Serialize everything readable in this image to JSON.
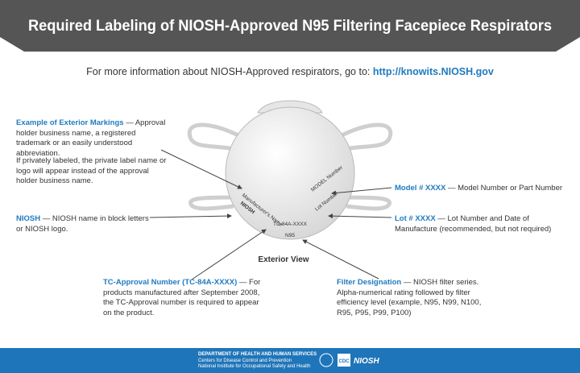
{
  "header": {
    "title": "Required Labeling of NIOSH-Approved N95 Filtering Facepiece Respirators"
  },
  "info": {
    "text": "For more information about NIOSH-Approved respirators, go to:",
    "link": "http://knowits.NIOSH.gov"
  },
  "annotations": {
    "exterior": {
      "label": "Example of Exterior Markings",
      "text": "— Approval holder business name, a registered trademark or an easily understood abbreviation.",
      "note": "If privately labeled, the private label name or logo will appear instead of the approval holder business name."
    },
    "niosh": {
      "label": "NIOSH",
      "text": "— NIOSH name in block letters or NIOSH logo."
    },
    "model": {
      "label": "Model # XXXX",
      "text": "— Model Number or Part Number"
    },
    "lot": {
      "label": "Lot # XXXX",
      "text": "— Lot Number and Date of Manufacture (recommended, but not required)"
    },
    "tc": {
      "label": "TC-Approval Number (TC-84A-XXXX)",
      "text": "— For products manufactured after September 2008, the TC-Approval number is required to appear on the product."
    },
    "filter": {
      "label": "Filter Designation",
      "text": "— NIOSH filter series. Alpha-numerical rating followed by filter efficiency level (example, N95, N99, N100, R95, P95, P99, P100)"
    }
  },
  "mask": {
    "manufacturer": "Manufacturer's Name",
    "niosh": "NIOSH",
    "model": "MODEL Number",
    "lot": "Lot Number",
    "tc": "TC-84A-XXXX",
    "filter": "N95",
    "caption": "Exterior View"
  },
  "footer": {
    "dept": "DEPARTMENT OF HEALTH AND HUMAN SERVICES",
    "cdc_full": "Centers for Disease Control and Prevention",
    "niosh_full": "National Institute for Occupational Safety and Health",
    "cdc": "CDC",
    "niosh": "NIOSH"
  }
}
